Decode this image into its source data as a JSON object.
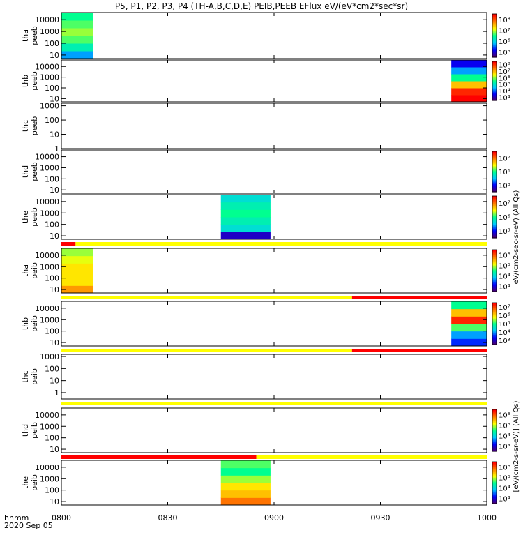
{
  "figure": {
    "title": "P5, P1, P2, P3, P4 (TH-A,B,C,D,E) PEIB,PEEB EFlux eV/(eV*cm2*sec*sr)",
    "time_labels": [
      "0800",
      "0830",
      "0900",
      "0930",
      "1000"
    ],
    "corner_label_1": "hhmm",
    "corner_label_2": "2020 Sep 05"
  },
  "chart_data": {
    "type": "heatmap",
    "x_range": [
      "08:00",
      "10:00"
    ],
    "x_ticks": [
      "0800",
      "0830",
      "0900",
      "0930",
      "1000"
    ],
    "y_scale": "log",
    "colorscale": [
      "#4b006e",
      "#0000ff",
      "#00c8ff",
      "#00ff90",
      "#ffff00",
      "#ff8000",
      "#ff0000"
    ],
    "panels": [
      {
        "label": [
          "tha",
          "peeb"
        ],
        "ylim": [
          5,
          40000
        ],
        "yticks": [
          "10",
          "100",
          "1000",
          "10000"
        ],
        "cbar": true,
        "cbar_ticks": [
          "10⁵",
          "10⁶",
          "10⁷",
          "10⁸"
        ],
        "blocks": [
          {
            "t0": "08:00",
            "t1": "08:09",
            "levels": [
              0.3,
              0.45,
              0.55,
              0.6,
              0.55,
              0.5
            ]
          }
        ]
      },
      {
        "label": [
          "thb",
          "peeb"
        ],
        "ylim": [
          5,
          40000
        ],
        "yticks": [
          "10",
          "100",
          "1000",
          "10000"
        ],
        "cbar": true,
        "cbar_ticks": [
          "10³",
          "10⁴",
          "10⁵",
          "10⁶",
          "10⁷",
          "10⁸"
        ],
        "blocks": [
          {
            "t0": "09:50",
            "t1": "10:00",
            "levels": [
              1.0,
              0.95,
              0.75,
              0.5,
              0.3,
              0.15
            ]
          }
        ]
      },
      {
        "label": [
          "thc",
          "peeb"
        ],
        "ylim": [
          1,
          1500
        ],
        "yticks": [
          "1",
          "10",
          "100",
          "1000"
        ],
        "cbar": false,
        "blocks": []
      },
      {
        "label": [
          "thd",
          "peeb"
        ],
        "ylim": [
          5,
          40000
        ],
        "yticks": [
          "10",
          "100",
          "1000",
          "10000"
        ],
        "cbar": true,
        "cbar_ticks": [
          "10⁵",
          "10⁶",
          "10⁷"
        ],
        "blocks": []
      },
      {
        "label": [
          "the",
          "peeb"
        ],
        "ylim": [
          5,
          40000
        ],
        "yticks": [
          "10",
          "100",
          "1000",
          "10000"
        ],
        "cbar": true,
        "cbar_ticks": [
          "10⁵",
          "10⁶",
          "10⁷"
        ],
        "blocks": [
          {
            "t0": "08:45",
            "t1": "08:59",
            "levels": [
              0.1,
              0.4,
              0.45,
              0.5,
              0.45,
              0.4
            ]
          }
        ],
        "strip": [
          {
            "t0": "08:00",
            "t1": "08:04",
            "color": "#ff0000"
          },
          {
            "t0": "08:04",
            "t1": "10:00",
            "color": "#ffff00"
          }
        ]
      },
      {
        "label": [
          "tha",
          "peib"
        ],
        "ylim": [
          5,
          40000
        ],
        "yticks": [
          "10",
          "100",
          "1000",
          "10000"
        ],
        "cbar": true,
        "cbar_ticks": [
          "10³",
          "10⁴",
          "10⁵",
          "10⁶"
        ],
        "blocks": [
          {
            "t0": "08:00",
            "t1": "08:09",
            "levels": [
              0.8,
              0.7,
              0.7,
              0.7,
              0.65,
              0.6
            ]
          }
        ],
        "strip": [
          {
            "t0": "08:00",
            "t1": "09:22",
            "color": "#ffff00"
          },
          {
            "t0": "09:22",
            "t1": "10:00",
            "color": "#ff0000"
          }
        ]
      },
      {
        "label": [
          "thb",
          "peib"
        ],
        "ylim": [
          5,
          40000
        ],
        "yticks": [
          "10",
          "100",
          "1000",
          "10000"
        ],
        "cbar": true,
        "cbar_ticks": [
          "10³",
          "10⁴",
          "10⁵",
          "10⁶",
          "10⁷"
        ],
        "blocks": [
          {
            "t0": "09:50",
            "t1": "10:00",
            "levels": [
              0.2,
              0.3,
              0.55,
              0.95,
              0.75,
              0.5
            ]
          }
        ],
        "strip": [
          {
            "t0": "08:00",
            "t1": "09:22",
            "color": "#ffff00"
          },
          {
            "t0": "09:22",
            "t1": "10:00",
            "color": "#ff0000"
          }
        ]
      },
      {
        "label": [
          "thc",
          "peib"
        ],
        "ylim": [
          0.3,
          1500
        ],
        "yticks": [
          "1",
          "10",
          "100",
          "1000"
        ],
        "cbar": false,
        "blocks": [],
        "strip": [
          {
            "t0": "08:00",
            "t1": "10:00",
            "color": "#ffff00"
          }
        ]
      },
      {
        "label": [
          "thd",
          "peib"
        ],
        "ylim": [
          5,
          40000
        ],
        "yticks": [
          "10",
          "100",
          "1000",
          "10000"
        ],
        "cbar": true,
        "cbar_ticks": [
          "10³",
          "10⁴",
          "10⁵",
          "10⁶"
        ],
        "blocks": [],
        "strip": [
          {
            "t0": "08:00",
            "t1": "08:55",
            "color": "#ff0000"
          },
          {
            "t0": "08:55",
            "t1": "10:00",
            "color": "#ffff00"
          }
        ]
      },
      {
        "label": [
          "the",
          "peib"
        ],
        "ylim": [
          5,
          40000
        ],
        "yticks": [
          "10",
          "100",
          "1000",
          "10000"
        ],
        "cbar": true,
        "cbar_ticks": [
          "10³",
          "10⁴",
          "10⁵",
          "10⁶"
        ],
        "blocks": [
          {
            "t0": "08:45",
            "t1": "08:59",
            "levels": [
              0.85,
              0.75,
              0.7,
              0.6,
              0.5,
              0.55
            ]
          }
        ]
      }
    ],
    "colorbar_labels": [
      "eV/(cm2-sec-sr-eV) (All Qs)",
      "[eV/(cm2-s-sr-eV)] (All Qs)"
    ]
  }
}
